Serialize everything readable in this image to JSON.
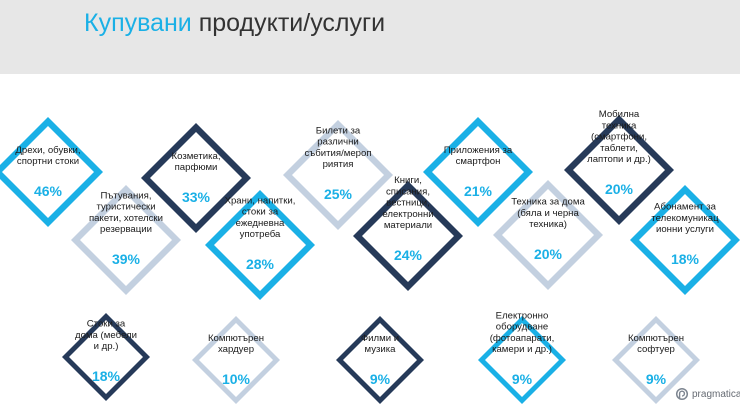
{
  "title": {
    "highlight": "Купувани",
    "rest": " продукти/услуги"
  },
  "brand": {
    "name": "pragmatica"
  },
  "colors": {
    "light_blue": "#1ab0e6",
    "navy": "#263a59",
    "pale": "#c3d0e0",
    "label": "#1b1b1b"
  },
  "chart_data": {
    "type": "bar",
    "unit": "%",
    "items": [
      {
        "label": "Дрехи, обувки, спортни стоки",
        "value": 46,
        "display": "46%",
        "tone": "light_blue"
      },
      {
        "label": "Пътувания, туристически пакети, хотелски резервации",
        "value": 39,
        "display": "39%",
        "tone": "pale"
      },
      {
        "label": "Козметика, парфюми",
        "value": 33,
        "display": "33%",
        "tone": "navy"
      },
      {
        "label": "Храни, напитки, стоки за ежедневна употреба",
        "value": 28,
        "display": "28%",
        "tone": "light_blue"
      },
      {
        "label": "Билети за различни събития/мероприятия",
        "value": 25,
        "display": "25%",
        "tone": "pale"
      },
      {
        "label": "Книги, списания, вестници, електронни материали",
        "value": 24,
        "display": "24%",
        "tone": "navy"
      },
      {
        "label": "Приложения за смартфон",
        "value": 21,
        "display": "21%",
        "tone": "light_blue"
      },
      {
        "label": "Техника за дома (бяла и черна техника)",
        "value": 20,
        "display": "20%",
        "tone": "pale"
      },
      {
        "label": "Мобилна техника (смартфони, таблети, лаптопи и др.)",
        "value": 20,
        "display": "20%",
        "tone": "navy"
      },
      {
        "label": "Абонамент за телекомуникационни услуги",
        "value": 18,
        "display": "18%",
        "tone": "light_blue"
      },
      {
        "label": "Стоки за дома (мебели и др.)",
        "value": 18,
        "display": "18%",
        "tone": "navy"
      },
      {
        "label": "Компютърен хардуер",
        "value": 10,
        "display": "10%",
        "tone": "pale"
      },
      {
        "label": "Филми и музика",
        "value": 9,
        "display": "9%",
        "tone": "navy"
      },
      {
        "label": "Електронно оборудване (фотоапарати, камери и др.)",
        "value": 9,
        "display": "9%",
        "tone": "light_blue"
      },
      {
        "label": "Компютърен софтуер",
        "value": 9,
        "display": "9%",
        "tone": "pale"
      }
    ]
  }
}
